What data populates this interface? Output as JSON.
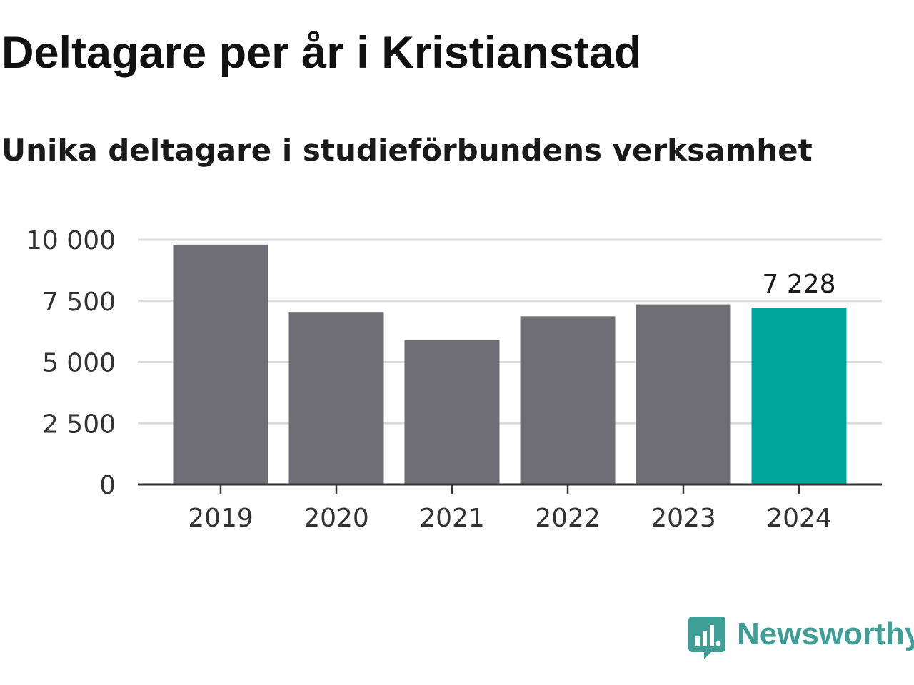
{
  "title": "Deltagare per år i Kristianstad",
  "subtitle": "Unika deltagare i studieförbundens verksamhet",
  "colors": {
    "bar": "#6f6e74",
    "highlight": "#00a59b",
    "grid": "#dcdcdc",
    "axis": "#333333",
    "brand": "#3d9f96"
  },
  "brand": {
    "name": "Newsworthy",
    "icon": "newsworthy-logo-icon"
  },
  "chart_data": {
    "type": "bar",
    "title": "Deltagare per år i Kristianstad",
    "subtitle": "Unika deltagare i studieförbundens verksamhet",
    "xlabel": "",
    "ylabel": "",
    "categories": [
      "2019",
      "2020",
      "2021",
      "2022",
      "2023",
      "2024"
    ],
    "values": [
      9800,
      7050,
      5900,
      6870,
      7360,
      7228
    ],
    "highlight_index": 5,
    "data_labels": [
      {
        "index": 5,
        "text": "7 228"
      }
    ],
    "ylim": [
      0,
      10000
    ],
    "yticks": [
      0,
      2500,
      5000,
      7500,
      10000
    ],
    "ytick_labels": [
      "0",
      "2 500",
      "5 000",
      "7 500",
      "10 000"
    ],
    "grid": true,
    "legend": "none"
  }
}
